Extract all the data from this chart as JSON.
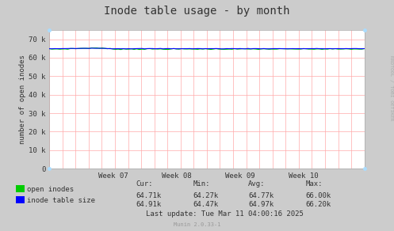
{
  "title": "Inode table usage - by month",
  "ylabel": "number of open inodes",
  "bg_color": "#CCCCCC",
  "plot_bg_color": "#FFFFFF",
  "yticks": [
    0,
    10000,
    20000,
    30000,
    40000,
    50000,
    60000,
    70000
  ],
  "ytick_labels": [
    "0",
    "10 k",
    "20 k",
    "30 k",
    "40 k",
    "50 k",
    "60 k",
    "70 k"
  ],
  "ylim": [
    0,
    75000
  ],
  "xtick_labels": [
    "Week 07",
    "Week 08",
    "Week 09",
    "Week 10"
  ],
  "open_inodes_color": "#00CC00",
  "inode_table_color": "#0000FF",
  "open_inodes_label": "open inodes",
  "inode_table_label": "inode table size",
  "stats_cur_open": "64.71k",
  "stats_min_open": "64.27k",
  "stats_avg_open": "64.77k",
  "stats_max_open": "66.00k",
  "stats_cur_inode": "64.91k",
  "stats_min_inode": "64.47k",
  "stats_avg_inode": "64.97k",
  "stats_max_inode": "66.20k",
  "last_update": "Last update: Tue Mar 11 04:00:16 2025",
  "munin_label": "Munin 2.0.33-1",
  "rrdtool_label": "RRDTOOL / TOBI OETIKER",
  "title_fontsize": 10,
  "axis_fontsize": 6.5,
  "stats_fontsize": 6.5,
  "n_points": 120
}
